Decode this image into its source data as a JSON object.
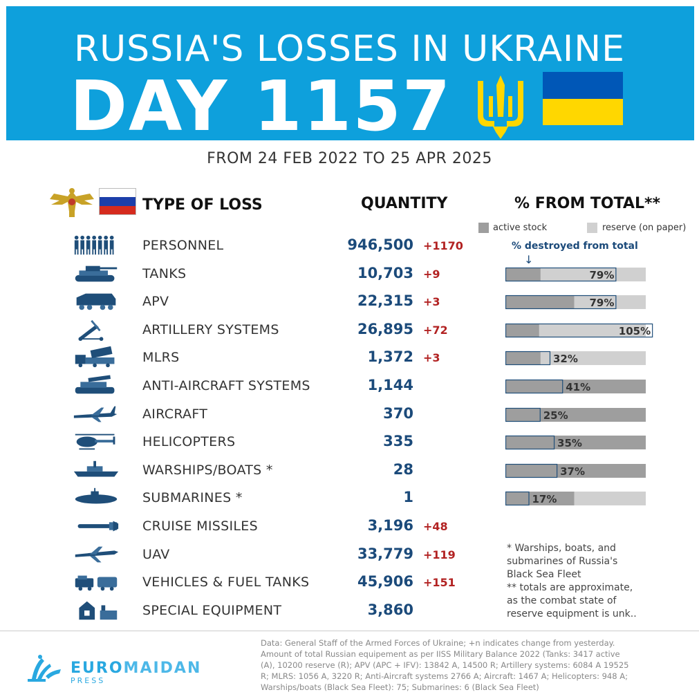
{
  "header": {
    "title_line1": "RUSSIA'S LOSSES IN UKRAINE",
    "title_line2": "DAY 1157",
    "subtitle": "FROM 24 FEB 2022 TO 25 APR 2025"
  },
  "columns": {
    "type": "TYPE OF LOSS",
    "quantity": "QUANTITY",
    "percent": "% FROM TOTAL**"
  },
  "legend": {
    "active": "active stock",
    "reserve": "reserve (on paper)",
    "destroyed": "% destroyed from total",
    "arrow": "↓"
  },
  "colors": {
    "banner": "#0ea0dc",
    "active_stock": "#9e9e9e",
    "reserve": "#d0d0d0",
    "qty": "#1b4a7a",
    "delta": "#b22222",
    "ua_blue": "#0057b7",
    "ua_yellow": "#ffd700"
  },
  "chart_data": {
    "type": "table",
    "rows": [
      {
        "label": "PERSONNEL",
        "quantity": "946,500",
        "delta": "+1170",
        "icon": "soldiers-icon"
      },
      {
        "label": "TANKS",
        "quantity": "10,703",
        "delta": "+9",
        "icon": "tank-icon",
        "pct": 79,
        "pct_label": "79%",
        "active_share": 0.25
      },
      {
        "label": "APV",
        "quantity": "22,315",
        "delta": "+3",
        "icon": "apv-icon",
        "pct": 79,
        "pct_label": "79%",
        "active_share": 0.49
      },
      {
        "label": "ARTILLERY SYSTEMS",
        "quantity": "26,895",
        "delta": "+72",
        "icon": "artillery-icon",
        "pct": 105,
        "pct_label": "105%",
        "active_share": 0.24
      },
      {
        "label": "MLRS",
        "quantity": "1,372",
        "delta": "+3",
        "icon": "mlrs-icon",
        "pct": 32,
        "pct_label": "32%",
        "active_share": 0.25
      },
      {
        "label": "ANTI-AIRCRAFT SYSTEMS",
        "quantity": "1,144",
        "delta": "",
        "icon": "anti-aircraft-icon",
        "pct": 41,
        "pct_label": "41%",
        "active_share": 1.0
      },
      {
        "label": "AIRCRAFT",
        "quantity": "370",
        "delta": "",
        "icon": "aircraft-icon",
        "pct": 25,
        "pct_label": "25%",
        "active_share": 1.0
      },
      {
        "label": "HELICOPTERS",
        "quantity": "335",
        "delta": "",
        "icon": "helicopter-icon",
        "pct": 35,
        "pct_label": "35%",
        "active_share": 1.0
      },
      {
        "label": "WARSHIPS/BOATS *",
        "quantity": "28",
        "delta": "",
        "icon": "warship-icon",
        "pct": 37,
        "pct_label": "37%",
        "active_share": 1.0
      },
      {
        "label": "SUBMARINES *",
        "quantity": "1",
        "delta": "",
        "icon": "submarine-icon",
        "pct": 17,
        "pct_label": "17%",
        "active_share": 0.49
      },
      {
        "label": "CRUISE MISSILES",
        "quantity": "3,196",
        "delta": "+48",
        "icon": "missile-icon"
      },
      {
        "label": "UAV",
        "quantity": "33,779",
        "delta": "+119",
        "icon": "uav-icon"
      },
      {
        "label": "VEHICLES & FUEL TANKS",
        "quantity": "45,906",
        "delta": "+151",
        "icon": "vehicles-icon"
      },
      {
        "label": "SPECIAL EQUIPMENT",
        "quantity": "3,860",
        "delta": "",
        "icon": "special-equipment-icon"
      }
    ]
  },
  "footnote": [
    "* Warships, boats, and",
    "submarines of Russia's",
    "Black Sea Fleet",
    "** totals are approximate,",
    "as the combat state of",
    "reserve equipment is unk.."
  ],
  "source": [
    "Data: General Staff of the Armed Forces of Ukraine; +n indicates change from yesterday.",
    "Amount of total Russian equipement as per IISS Military Balance 2022 (Tanks: 3417 active",
    "(A), 10200 reserve (R); APV (APC + IFV): 13842 A, 14500 R; Artillery systems: 6084 A 19525",
    "R; MLRS: 1056 A, 3220 R; Anti-Aircraft systems 2766 A; Aircraft: 1467 A; Helicopters: 948 A;",
    "Warships/boats (Black Sea Fleet): 75; Submarines: 6 (Black Sea Fleet)"
  ],
  "logo": {
    "name_a": "EURO",
    "name_b": "MAIDAN",
    "sub": "PRESS"
  }
}
